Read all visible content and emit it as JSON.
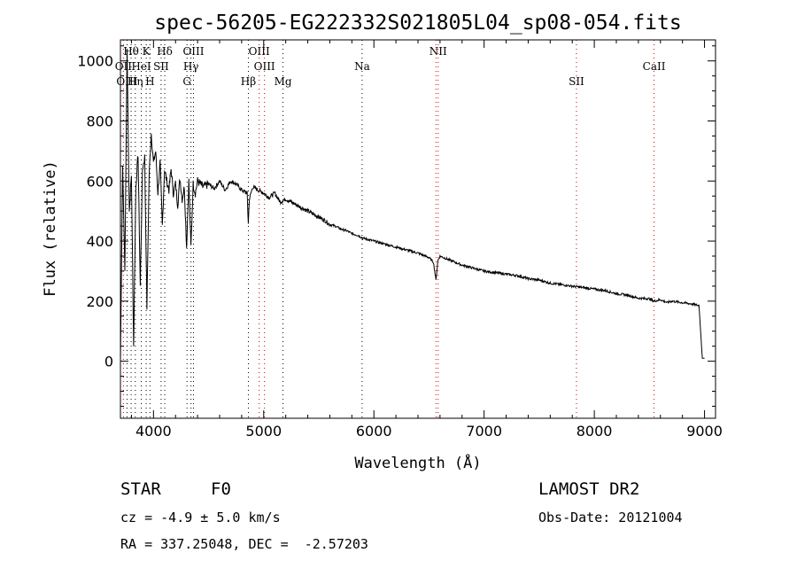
{
  "chart_data": {
    "type": "line",
    "title": "spec-56205-EG222332S021805L04_sp08-054.fits",
    "xlabel": "Wavelength (Å)",
    "ylabel": "Flux (relative)",
    "xlim": [
      3700,
      9100
    ],
    "ylim": [
      -190,
      1070
    ],
    "xticks": [
      4000,
      5000,
      6000,
      7000,
      8000,
      9000
    ],
    "yticks": [
      0,
      200,
      400,
      600,
      800,
      1000
    ],
    "series": [
      {
        "x": [
          3700,
          3720,
          3740,
          3760,
          3780,
          3800,
          3820,
          3840,
          3860,
          3880,
          3900,
          3920,
          3940,
          3960,
          3980,
          4000,
          4020,
          4040,
          4060,
          4080,
          4100,
          4120,
          4140,
          4160,
          4180,
          4200,
          4220,
          4240,
          4260,
          4280,
          4300,
          4320,
          4340,
          4360,
          4380,
          4400,
          4450,
          4500,
          4550,
          4600,
          4650,
          4700,
          4750,
          4800,
          4850,
          4860,
          4870,
          4900,
          4950,
          5000,
          5050,
          5100,
          5150,
          5200,
          5250,
          5300,
          5350,
          5400,
          5450,
          5500,
          5550,
          5600,
          5650,
          5700,
          5750,
          5800,
          5850,
          5900,
          5950,
          6000,
          6100,
          6200,
          6300,
          6400,
          6500,
          6540,
          6563,
          6580,
          6600,
          6700,
          6800,
          6900,
          7000,
          7100,
          7200,
          7300,
          7400,
          7500,
          7600,
          7700,
          7800,
          7900,
          8000,
          8100,
          8200,
          8300,
          8400,
          8498,
          8542,
          8600,
          8662,
          8700,
          8800,
          8900,
          8950,
          8980,
          8990,
          9000
        ],
        "y": [
          0,
          650,
          300,
          1040,
          500,
          620,
          50,
          580,
          690,
          250,
          640,
          680,
          180,
          620,
          760,
          660,
          700,
          560,
          660,
          450,
          640,
          600,
          570,
          640,
          560,
          590,
          520,
          610,
          540,
          580,
          380,
          600,
          380,
          590,
          560,
          600,
          580,
          590,
          575,
          600,
          570,
          600,
          590,
          570,
          560,
          460,
          540,
          580,
          570,
          560,
          545,
          560,
          530,
          540,
          530,
          520,
          510,
          500,
          490,
          480,
          470,
          455,
          450,
          440,
          435,
          425,
          420,
          410,
          405,
          400,
          390,
          380,
          370,
          360,
          345,
          330,
          270,
          335,
          350,
          335,
          320,
          310,
          300,
          295,
          290,
          285,
          275,
          270,
          260,
          255,
          250,
          245,
          240,
          235,
          225,
          220,
          210,
          208,
          200,
          205,
          195,
          200,
          195,
          190,
          185,
          10,
          10,
          10
        ]
      }
    ],
    "line_labels": [
      {
        "label": "Hθ",
        "x": 3797
      },
      {
        "label": "K",
        "x": 3934
      },
      {
        "label": "Hδ",
        "x": 4102
      },
      {
        "label": "OIII",
        "x": 4363
      },
      {
        "label": "OIII",
        "x": 4959
      },
      {
        "label": "NII",
        "x": 6583
      },
      {
        "label": "OII",
        "x": 3727
      },
      {
        "label": "HeI",
        "x": 3889
      },
      {
        "label": "SII",
        "x": 4069
      },
      {
        "label": "Hγ",
        "x": 4340
      },
      {
        "label": "OIII",
        "x": 5007
      },
      {
        "label": "Na",
        "x": 5893
      },
      {
        "label": "CaII",
        "x": 8542
      },
      {
        "label": "OIII",
        "x": 3760
      },
      {
        "label": "Hη",
        "x": 3835
      },
      {
        "label": "H",
        "x": 3968
      },
      {
        "label": "G",
        "x": 4304
      },
      {
        "label": "Hβ",
        "x": 4861
      },
      {
        "label": "Mg",
        "x": 5175
      },
      {
        "label": "SII",
        "x": 7838
      }
    ],
    "marker_lines": [
      3727,
      3760,
      3797,
      3835,
      3889,
      3934,
      3968,
      4069,
      4102,
      4304,
      4340,
      4363,
      4861,
      4959,
      5007,
      5175,
      5893,
      6563,
      6583,
      7838,
      8542
    ],
    "colors": {
      "spectrum": "#000000",
      "emission_marker": "#cc0000",
      "absorption_marker": "#000000"
    }
  },
  "info": {
    "class_label": "STAR",
    "subclass": "F0",
    "survey": "LAMOST DR2",
    "cz": "cz = -4.9 ± 5.0 km/s",
    "obs_date": "Obs-Date: 20121004",
    "coords": "RA = 337.25048, DEC =  -2.57203"
  }
}
